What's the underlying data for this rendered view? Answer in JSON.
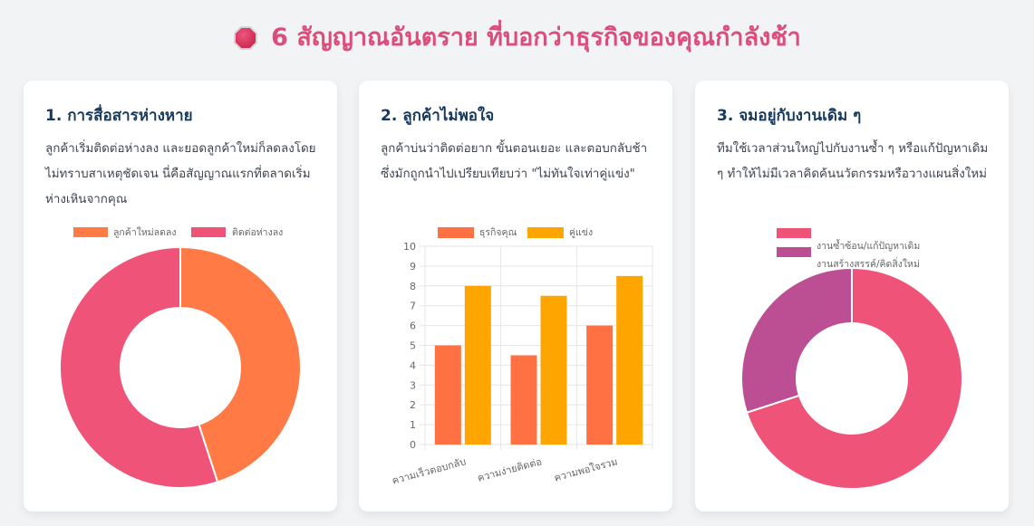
{
  "header": {
    "icon": "stop-sign-icon",
    "title": "6 สัญญาณอันตราย ที่บอกว่าธุรกิจของคุณกำลังช้า",
    "color": "#dc4d7a"
  },
  "cards": [
    {
      "title": "1. การสื่อสารห่างหาย",
      "description": "ลูกค้าเริ่มติดต่อห่างลง และยอดลูกค้าใหม่ก็ลดลงโดยไม่ทราบสาเหตุชัดเจน นี่คือสัญญาณแรกที่ตลาดเริ่มห่างเหินจากคุณ",
      "legend": [
        "ลูกค้าใหม่ลดลง",
        "ติดต่อห่างลง"
      ]
    },
    {
      "title": "2. ลูกค้าไม่พอใจ",
      "description": "ลูกค้าบ่นว่าติดต่อยาก ขั้นตอนเยอะ และตอบกลับช้า ซึ่งมักถูกนำไปเปรียบเทียบว่า \"ไม่ทันใจเท่าคู่แข่ง\"",
      "legend": [
        "ธุรกิจคุณ",
        "คู่แข่ง"
      ]
    },
    {
      "title": "3. จมอยู่กับงานเดิม ๆ",
      "description": "ทีมใช้เวลาส่วนใหญ่ไปกับงานซ้ำ ๆ หรือแก้ปัญหาเดิม ๆ ทำให้ไม่มีเวลาคิดค้นนวัตกรรมหรือวางแผนสิ่งใหม่",
      "legend": [
        "งานซ้ำซ้อน/แก้ปัญหาเดิม",
        "งานสร้างสรรค์/คิดสิ่งใหม่"
      ]
    }
  ],
  "chart_data": [
    {
      "type": "pie",
      "variant": "doughnut",
      "title": "การสื่อสารห่างหาย",
      "categories": [
        "ลูกค้าใหม่ลดลง",
        "ติดต่อห่างลง"
      ],
      "values": [
        45,
        55
      ],
      "colors": [
        "#ff7a45",
        "#ef5377"
      ],
      "legend_position": "top"
    },
    {
      "type": "bar",
      "title": "ลูกค้าไม่พอใจ",
      "categories": [
        "ความเร็วตอบกลับ",
        "ความง่ายติดต่อ",
        "ความพอใจรวม"
      ],
      "series": [
        {
          "name": "ธุรกิจคุณ",
          "values": [
            5,
            4.5,
            6
          ],
          "color": "#ff7043"
        },
        {
          "name": "คู่แข่ง",
          "values": [
            8,
            7.5,
            8.5
          ],
          "color": "#ffa500"
        }
      ],
      "yticks": [
        0,
        1,
        2,
        3,
        4,
        5,
        6,
        7,
        8,
        9,
        10
      ],
      "ylim": [
        0,
        10
      ],
      "grid": true,
      "legend_position": "top",
      "xlabel": "",
      "ylabel": ""
    },
    {
      "type": "pie",
      "variant": "doughnut",
      "title": "จมอยู่กับงานเดิม ๆ",
      "categories": [
        "งานซ้ำซ้อน/แก้ปัญหาเดิม",
        "งานสร้างสรรค์/คิดสิ่งใหม่"
      ],
      "values": [
        70,
        30
      ],
      "colors": [
        "#ef5377",
        "#bc4f93"
      ],
      "legend_position": "top"
    }
  ]
}
